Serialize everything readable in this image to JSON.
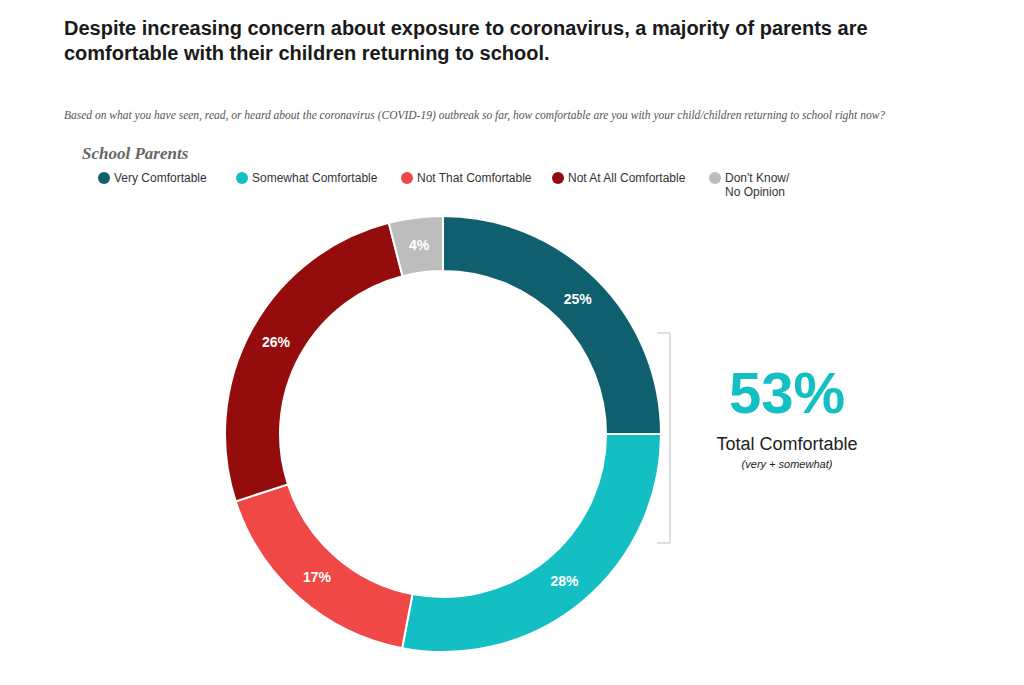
{
  "chart_data": {
    "type": "pie",
    "title": "Despite increasing concern about exposure to coronavirus, a majority of parents are comfortable with their children returning to school.",
    "subtitle": "Based on what you have seen, read, or heard about the coronavirus (COVID-19) outbreak so far, how comfortable are you with your child/children returning to school right now?",
    "legend_title": "School Parents",
    "legend": "top",
    "categories": [
      "Very Comfortable",
      "Somewhat Comfortable",
      "Not That Comfortable",
      "Not At All Comfortable",
      "Don't Know/ No Opinion"
    ],
    "values": [
      25,
      28,
      17,
      26,
      4
    ],
    "value_labels": [
      "25%",
      "28%",
      "17%",
      "26%",
      "4%"
    ],
    "colors": [
      "#0f5f6f",
      "#14bfc4",
      "#f04747",
      "#940c0c",
      "#bdbdbd"
    ],
    "data_labels": true,
    "annotation": {
      "value": 53,
      "value_label": "53%",
      "text": "Total Comfortable",
      "subtext": "(very + somewhat)"
    }
  }
}
